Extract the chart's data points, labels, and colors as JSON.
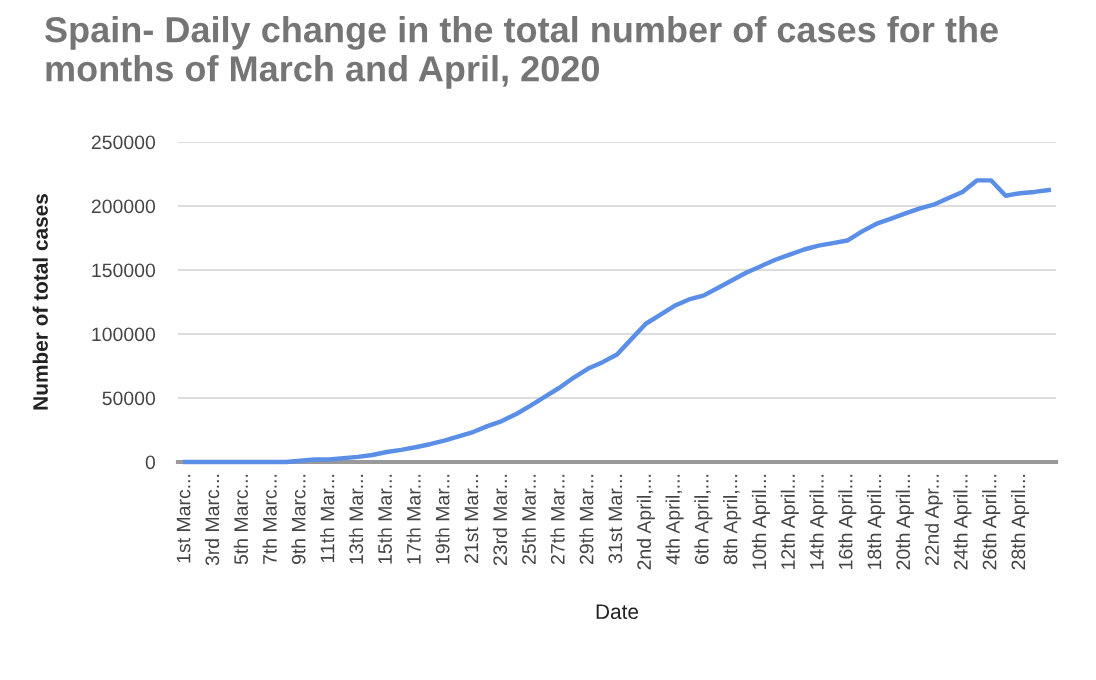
{
  "chart_data": {
    "type": "line",
    "title": "Spain- Daily change in the total number of cases for the months of March and April, 2020",
    "xlabel": "Date",
    "ylabel": "Number of total cases",
    "categories": [
      "1st Marc...",
      null,
      "3rd Marc...",
      null,
      "5th Marc...",
      null,
      "7th Marc...",
      null,
      "9th Marc...",
      null,
      "11th Mar...",
      null,
      "13th Mar...",
      null,
      "15th Mar...",
      null,
      "17th Mar...",
      null,
      "19th Mar...",
      null,
      "21st Mar...",
      null,
      "23rd Mar...",
      null,
      "25th Mar...",
      null,
      "27th Mar...",
      null,
      "29th Mar...",
      null,
      "31st Mar...",
      null,
      "2nd April,...",
      null,
      "4th April,...",
      null,
      "6th April,...",
      null,
      "8th April,...",
      null,
      "10th April...",
      null,
      "12th April...",
      null,
      "14th April...",
      null,
      "16th April...",
      null,
      "18th April...",
      null,
      "20th April...",
      null,
      "22nd Apr...",
      null,
      "24th April...",
      null,
      "26th April...",
      null,
      "28th April...",
      null,
      null
    ],
    "series": [
      {
        "color": "#5b8ee6",
        "values": [
          0,
          0,
          0,
          0,
          0,
          0,
          0,
          0,
          1000,
          2000,
          2000,
          3000,
          4000,
          5500,
          7800,
          9500,
          11500,
          13900,
          16700,
          20000,
          23400,
          28000,
          32000,
          37500,
          44000,
          51000,
          58000,
          66000,
          73000,
          78000,
          84000,
          96000,
          108000,
          115000,
          122000,
          127000,
          130000,
          136000,
          142000,
          148000,
          153000,
          158000,
          162000,
          166000,
          169000,
          171000,
          173000,
          180000,
          186000,
          190000,
          194000,
          198000,
          201000,
          206000,
          211000,
          220000,
          220000,
          208000,
          210000,
          211000,
          212500
        ]
      }
    ],
    "ylim": [
      0,
      250000
    ],
    "yticks": [
      0,
      50000,
      100000,
      150000,
      200000,
      250000
    ],
    "grid": "y",
    "marker": "none",
    "line_style": "solid"
  }
}
